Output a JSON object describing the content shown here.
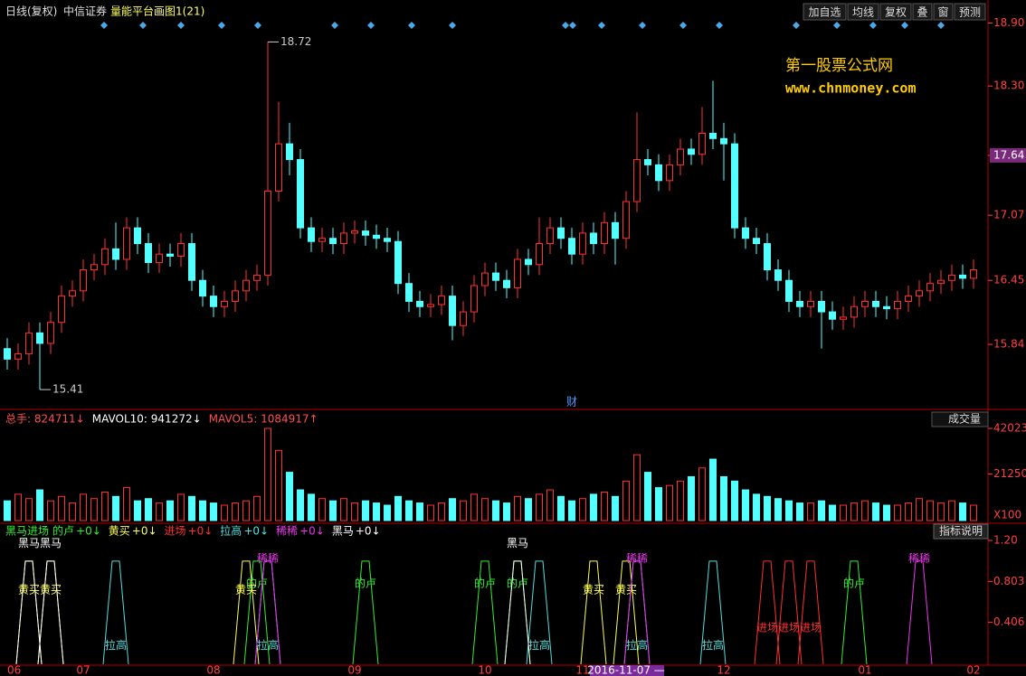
{
  "toolbar": {
    "period": "日线(复权)",
    "stock": "中信证券",
    "indicator": "量能平台画图1(21)",
    "buttons": [
      "加自选",
      "均线",
      "复权",
      "叠",
      "窗",
      "预测"
    ]
  },
  "watermark": {
    "title": "第一股票公式网",
    "url": "www.chnmoney.com"
  },
  "event_marker": "财",
  "chart_data": [
    {
      "type": "candlestick",
      "up_color": "#ff3232",
      "down_color": "#54ffff",
      "categories": [
        "06",
        null,
        null,
        null,
        null,
        null,
        null,
        "07",
        null,
        null,
        null,
        null,
        null,
        null,
        null,
        null,
        null,
        null,
        null,
        "08",
        null,
        null,
        null,
        null,
        null,
        null,
        null,
        null,
        null,
        null,
        null,
        null,
        "09",
        null,
        null,
        null,
        null,
        null,
        null,
        null,
        null,
        null,
        null,
        null,
        "10",
        null,
        null,
        null,
        null,
        null,
        null,
        null,
        null,
        "11",
        null,
        null,
        null,
        null,
        null,
        null,
        null,
        null,
        null,
        null,
        null,
        null,
        "12",
        null,
        null,
        null,
        null,
        null,
        null,
        null,
        null,
        null,
        null,
        null,
        null,
        "01",
        null,
        null,
        null,
        null,
        null,
        null,
        null,
        null,
        null,
        "02"
      ],
      "cursor": {
        "label": "2016-11-07 —",
        "at": 57
      },
      "open": [
        15.8,
        15.7,
        15.75,
        15.95,
        15.85,
        16.05,
        16.3,
        16.35,
        16.55,
        16.6,
        16.75,
        16.65,
        16.95,
        16.8,
        16.62,
        16.7,
        16.68,
        16.8,
        16.45,
        16.3,
        16.2,
        16.25,
        16.35,
        16.45,
        16.5,
        17.3,
        17.75,
        17.6,
        16.95,
        16.82,
        16.85,
        16.8,
        16.9,
        16.92,
        16.88,
        16.85,
        16.82,
        16.42,
        16.25,
        16.2,
        16.22,
        16.3,
        16.02,
        16.15,
        16.4,
        16.52,
        16.45,
        16.38,
        16.65,
        16.6,
        16.8,
        16.95,
        16.85,
        16.7,
        16.9,
        16.8,
        17.0,
        16.85,
        17.2,
        17.6,
        17.55,
        17.4,
        17.55,
        17.7,
        17.65,
        17.85,
        17.8,
        17.75,
        16.95,
        16.85,
        16.8,
        16.55,
        16.45,
        16.25,
        16.2,
        16.25,
        16.15,
        16.08,
        16.1,
        16.2,
        16.25,
        16.2,
        16.18,
        16.25,
        16.3,
        16.35,
        16.42,
        16.45,
        16.5,
        16.47
      ],
      "high": [
        15.9,
        15.85,
        16.05,
        16.05,
        16.15,
        16.4,
        16.45,
        16.65,
        16.7,
        16.85,
        17.0,
        17.05,
        17.05,
        16.9,
        16.8,
        16.8,
        16.9,
        16.9,
        16.55,
        16.4,
        16.35,
        16.45,
        16.55,
        16.6,
        18.72,
        18.15,
        17.95,
        17.7,
        17.05,
        16.95,
        16.95,
        17.0,
        17.02,
        17.02,
        16.98,
        16.95,
        16.92,
        16.52,
        16.35,
        16.32,
        16.4,
        16.4,
        16.25,
        16.5,
        16.62,
        16.62,
        16.55,
        16.75,
        16.75,
        17.05,
        17.05,
        17.05,
        16.95,
        17.0,
        17.0,
        17.1,
        17.1,
        17.3,
        18.05,
        17.7,
        17.65,
        17.65,
        17.8,
        17.8,
        18.1,
        18.35,
        17.95,
        17.85,
        17.05,
        16.95,
        16.9,
        16.65,
        16.55,
        16.35,
        16.35,
        16.35,
        16.25,
        16.2,
        16.3,
        16.35,
        16.35,
        16.3,
        16.35,
        16.4,
        16.45,
        16.52,
        16.55,
        16.6,
        16.6,
        16.65
      ],
      "low": [
        15.6,
        15.6,
        15.65,
        15.41,
        15.75,
        15.95,
        16.2,
        16.25,
        16.45,
        16.5,
        16.55,
        16.55,
        16.7,
        16.52,
        16.52,
        16.58,
        16.58,
        16.35,
        16.2,
        16.1,
        16.1,
        16.15,
        16.25,
        16.35,
        16.4,
        17.2,
        17.45,
        16.85,
        16.72,
        16.72,
        16.7,
        16.7,
        16.8,
        16.78,
        16.75,
        16.72,
        16.32,
        16.15,
        16.1,
        16.1,
        16.12,
        15.88,
        15.92,
        16.05,
        16.3,
        16.35,
        16.28,
        16.28,
        16.5,
        16.5,
        16.7,
        16.75,
        16.6,
        16.6,
        16.7,
        16.7,
        16.6,
        16.75,
        17.1,
        17.45,
        17.3,
        17.3,
        17.45,
        17.55,
        17.55,
        17.7,
        17.4,
        16.85,
        16.75,
        16.7,
        16.45,
        16.35,
        16.15,
        16.1,
        16.1,
        15.8,
        15.98,
        15.98,
        16.0,
        16.1,
        16.1,
        16.08,
        16.08,
        16.15,
        16.2,
        16.25,
        16.32,
        16.35,
        16.37,
        16.37
      ],
      "close": [
        15.7,
        15.75,
        15.95,
        15.85,
        16.05,
        16.3,
        16.35,
        16.55,
        16.6,
        16.75,
        16.65,
        16.95,
        16.8,
        16.62,
        16.7,
        16.68,
        16.8,
        16.45,
        16.3,
        16.2,
        16.25,
        16.35,
        16.45,
        16.5,
        17.3,
        17.75,
        17.6,
        16.95,
        16.82,
        16.85,
        16.8,
        16.9,
        16.92,
        16.88,
        16.85,
        16.82,
        16.42,
        16.25,
        16.2,
        16.22,
        16.3,
        16.02,
        16.15,
        16.4,
        16.52,
        16.45,
        16.38,
        16.65,
        16.6,
        16.8,
        16.95,
        16.85,
        16.7,
        16.9,
        16.8,
        17.0,
        16.85,
        17.2,
        17.6,
        17.55,
        17.4,
        17.55,
        17.7,
        17.65,
        17.85,
        17.8,
        17.75,
        16.95,
        16.85,
        16.8,
        16.55,
        16.45,
        16.25,
        16.2,
        16.25,
        16.15,
        16.08,
        16.1,
        16.2,
        16.25,
        16.2,
        16.18,
        16.25,
        16.3,
        16.35,
        16.42,
        16.45,
        16.5,
        16.47,
        16.55
      ],
      "ylim": [
        15.23,
        18.93
      ],
      "yticks": [
        15.84,
        16.45,
        17.07,
        17.64,
        {
          "value": 18.3,
          "label": "18.30"
        },
        {
          "value": 18.9,
          "label": "18.90"
        }
      ],
      "highlight_tick": 3
    },
    {
      "type": "volume",
      "menu": "成交量",
      "stats": [
        {
          "text": "总手: 824711↓",
          "color": "#ff5050"
        },
        {
          "text": "MAVOL10: 941272↓",
          "color": "#ffffff"
        },
        {
          "text": "MAVOL5: 1084917↑",
          "color": "#ff5050"
        }
      ],
      "values": [
        9000,
        12000,
        10000,
        14000,
        9000,
        11000,
        8000,
        12000,
        10000,
        13000,
        11000,
        15000,
        9000,
        10000,
        8000,
        9000,
        12000,
        11000,
        9000,
        8000,
        7000,
        8000,
        9000,
        11000,
        42023,
        32000,
        22000,
        14000,
        12000,
        10000,
        9000,
        10000,
        8000,
        9000,
        8000,
        7000,
        11000,
        9000,
        8000,
        7000,
        8000,
        10000,
        9000,
        12000,
        10000,
        9000,
        8000,
        11000,
        10000,
        12000,
        14000,
        11000,
        9000,
        10000,
        12000,
        13000,
        11000,
        18000,
        30000,
        22000,
        15000,
        16000,
        18000,
        20000,
        24000,
        28000,
        20000,
        18000,
        14000,
        12000,
        11000,
        10000,
        9000,
        8000,
        8000,
        9000,
        7000,
        7000,
        8000,
        9000,
        8000,
        7000,
        7000,
        8000,
        10000,
        9000,
        8000,
        9000,
        8000,
        7000
      ],
      "ylim": [
        0,
        45320
      ],
      "yticks": [
        21250,
        42023
      ],
      "unit_label": "X100"
    },
    {
      "type": "signal",
      "title": "黑马进场",
      "help": "指标说明",
      "level": 1,
      "signals": [
        {
          "name": "的卢",
          "readout": "+0↓",
          "color": "#33ee33",
          "at": [
            23,
            33,
            44,
            47,
            78
          ]
        },
        {
          "name": "黄买",
          "readout": "+0↓",
          "color": "#ffff55",
          "at": [
            2,
            4,
            22,
            54,
            57
          ]
        },
        {
          "name": "进场",
          "readout": "+0↓",
          "color": "#ff3030",
          "at": [
            70,
            72,
            74
          ]
        },
        {
          "name": "拉高",
          "readout": "+0↓",
          "color": "#55dddd",
          "at": [
            10,
            24,
            49,
            58,
            65
          ]
        },
        {
          "name": "稀稀",
          "readout": "+0↓",
          "color": "#ee33ee",
          "at": [
            24,
            58,
            84
          ]
        },
        {
          "name": "黑马",
          "readout": "+0↓",
          "color": "#ffffff",
          "at": [
            2,
            4,
            47
          ]
        }
      ],
      "ylim": [
        0,
        1.2
      ],
      "yticks": [
        0.406,
        0.803,
        {
          "value": 1.2,
          "label": "1.20"
        }
      ]
    }
  ]
}
